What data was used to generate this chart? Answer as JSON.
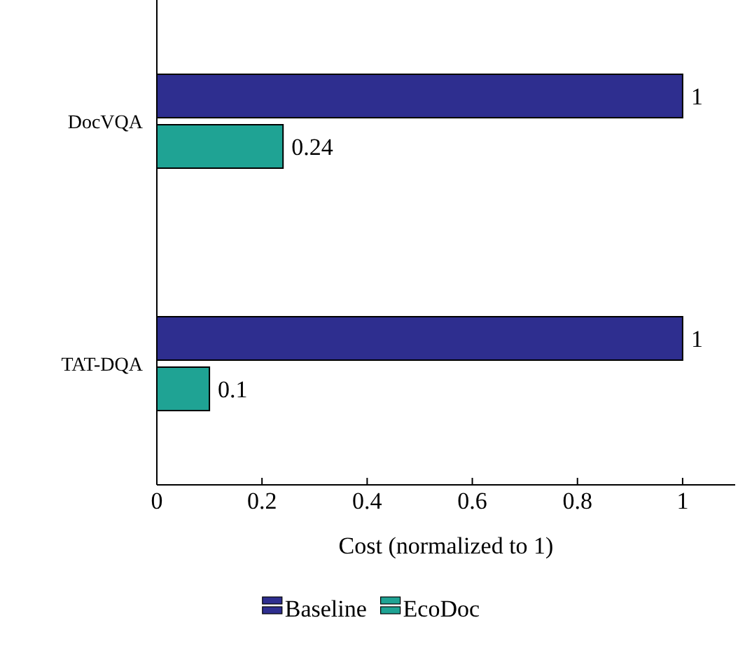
{
  "chart_data": {
    "type": "bar",
    "orientation": "horizontal",
    "xlabel": "Cost (normalized to 1)",
    "categories": [
      "DocVQA",
      "TAT-DQA"
    ],
    "series": [
      {
        "name": "Baseline",
        "color": "#2e2e8f",
        "values": [
          1,
          1
        ]
      },
      {
        "name": "EcoDoc",
        "color": "#1fa394",
        "values": [
          0.24,
          0.1
        ]
      }
    ],
    "xlim": [
      0,
      1.1
    ],
    "xticks": [
      0,
      0.2,
      0.4,
      0.6,
      0.8,
      1
    ],
    "data_labels": true,
    "legend": "bottom",
    "grid": false
  }
}
